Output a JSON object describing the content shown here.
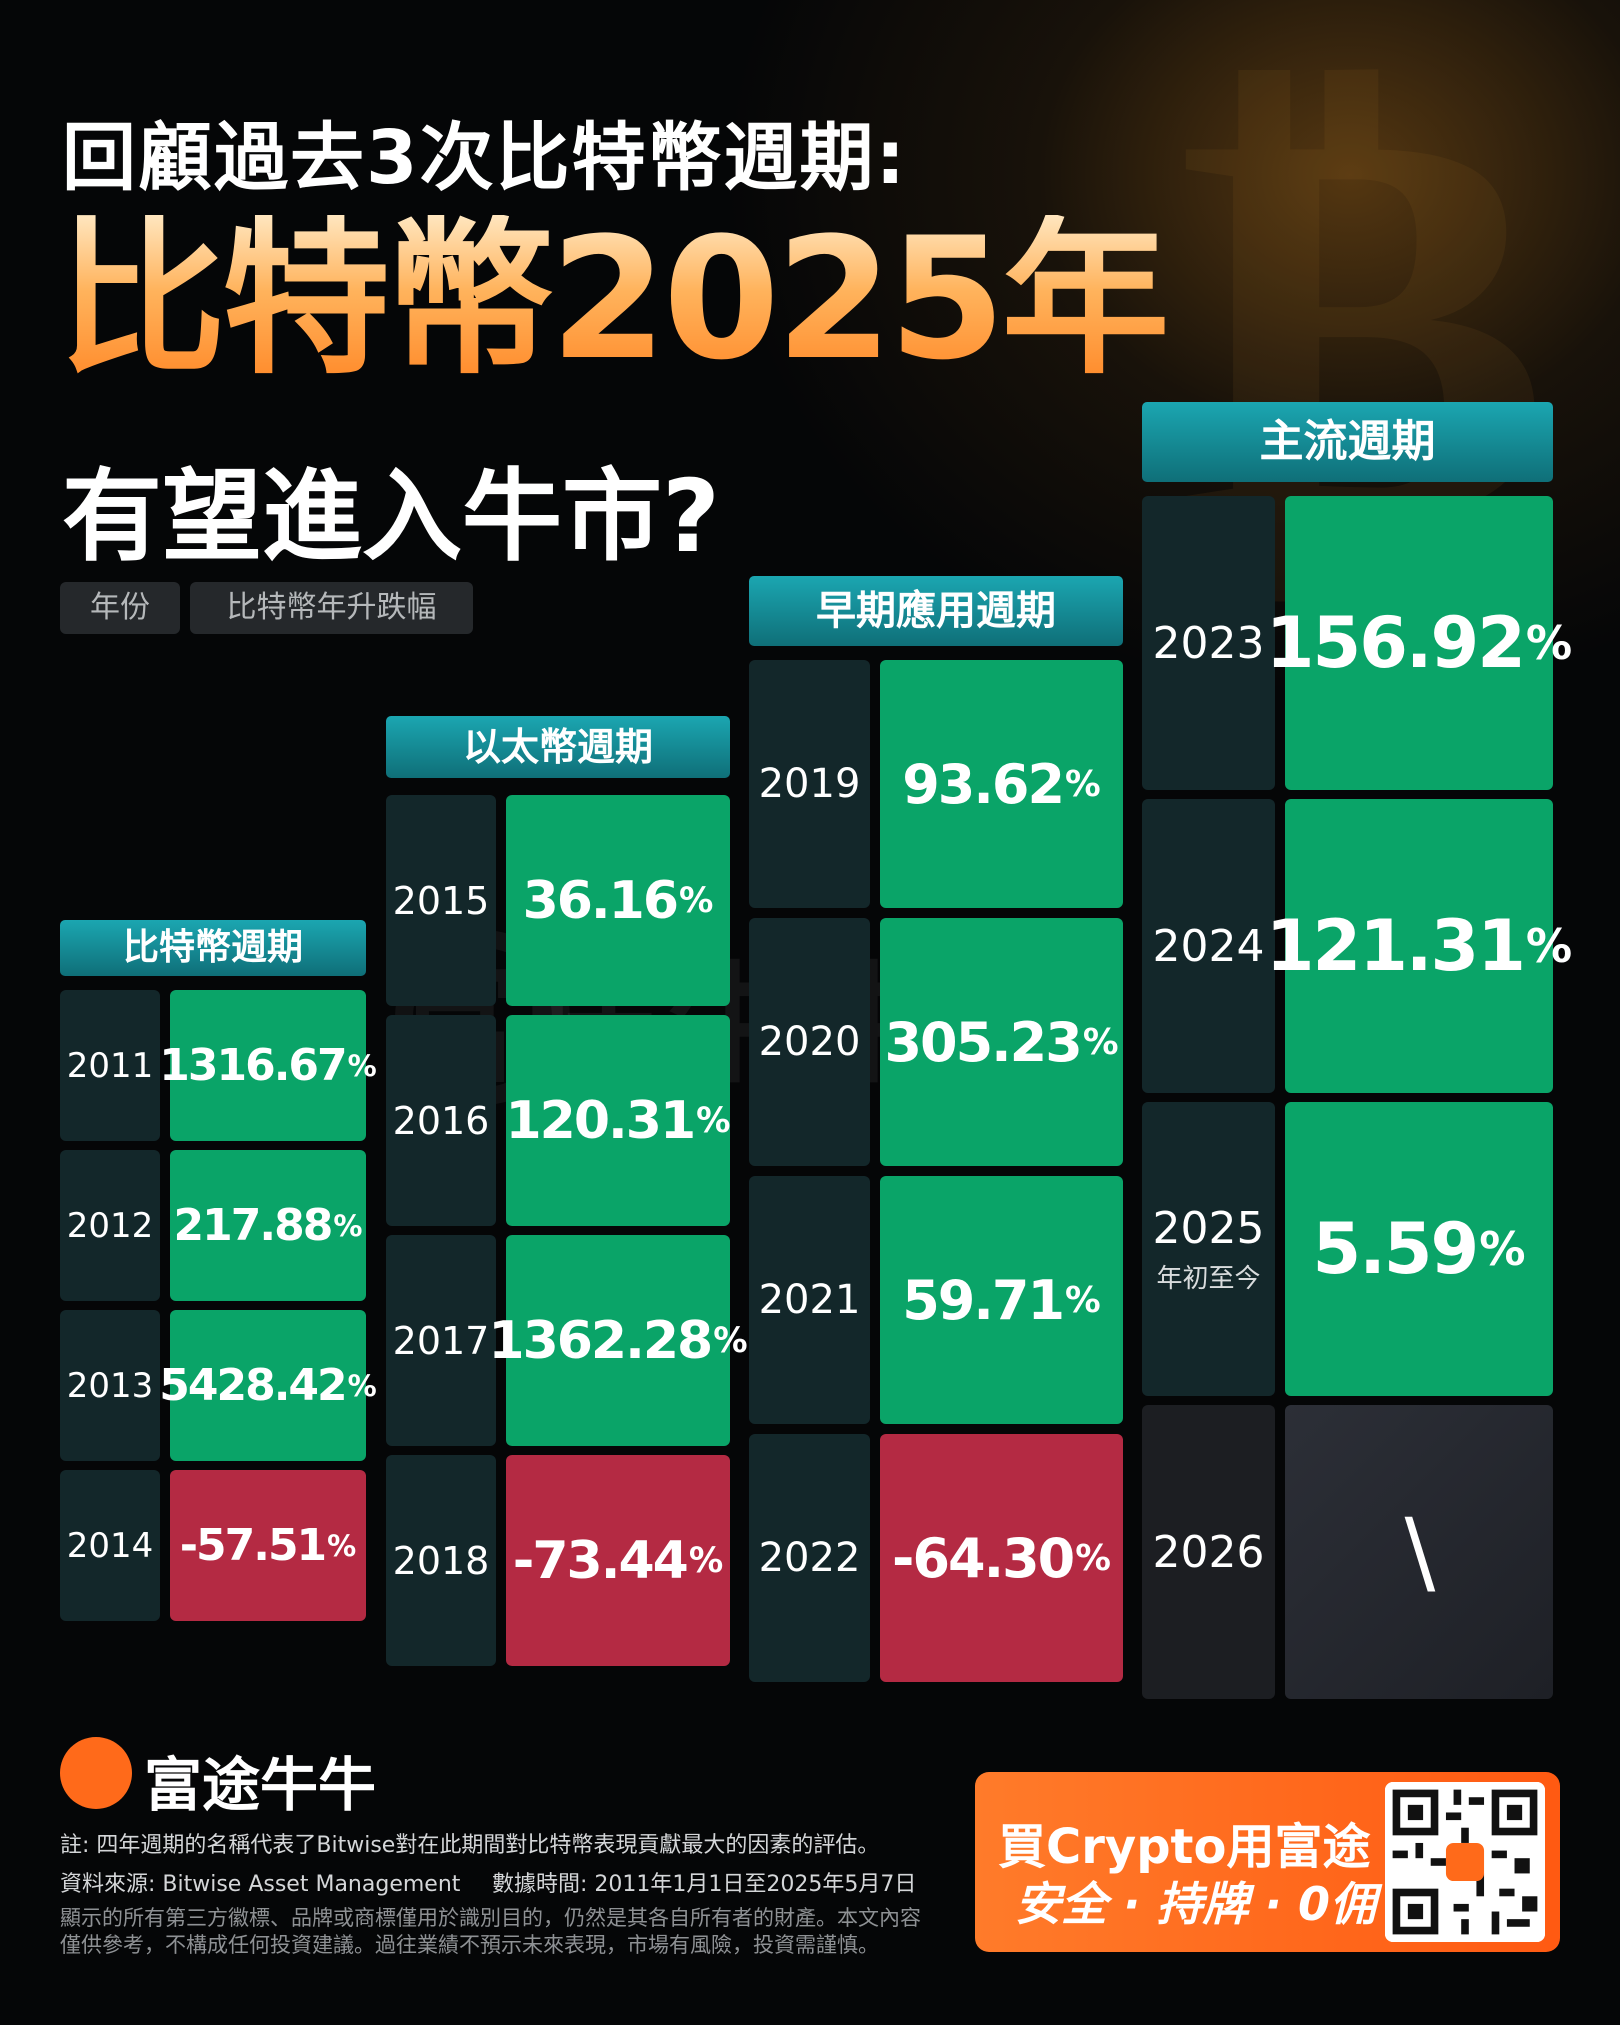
{
  "title": {
    "line1": "回顧過去3次比特幣週期:",
    "line2": "比特幣2025年",
    "line3": "有望進入牛市?"
  },
  "legend": {
    "year": "年份",
    "change": "比特幣年升跌幅"
  },
  "watermark": "富途牛牛",
  "chart_data": {
    "type": "table",
    "columns": [
      "年份",
      "比特幣年升跌幅"
    ],
    "groups": [
      {
        "name": "比特幣週期",
        "rows": [
          {
            "year": "2011",
            "value": "1316.67",
            "sign": "pos"
          },
          {
            "year": "2012",
            "value": "217.88",
            "sign": "pos"
          },
          {
            "year": "2013",
            "value": "5428.42",
            "sign": "pos"
          },
          {
            "year": "2014",
            "value": "-57.51",
            "sign": "neg"
          }
        ]
      },
      {
        "name": "以太幣週期",
        "rows": [
          {
            "year": "2015",
            "value": "36.16",
            "sign": "pos"
          },
          {
            "year": "2016",
            "value": "120.31",
            "sign": "pos"
          },
          {
            "year": "2017",
            "value": "1362.28",
            "sign": "pos"
          },
          {
            "year": "2018",
            "value": "-73.44",
            "sign": "neg"
          }
        ]
      },
      {
        "name": "早期應用週期",
        "rows": [
          {
            "year": "2019",
            "value": "93.62",
            "sign": "pos"
          },
          {
            "year": "2020",
            "value": "305.23",
            "sign": "pos"
          },
          {
            "year": "2021",
            "value": "59.71",
            "sign": "pos"
          },
          {
            "year": "2022",
            "value": "-64.30",
            "sign": "neg"
          }
        ]
      },
      {
        "name": "主流週期",
        "rows": [
          {
            "year": "2023",
            "value": "156.92",
            "sign": "pos"
          },
          {
            "year": "2024",
            "value": "121.31",
            "sign": "pos"
          },
          {
            "year": "2025",
            "sub": "年初至今",
            "value": "5.59",
            "sign": "pos"
          },
          {
            "year": "2026",
            "value": "\\",
            "sign": "na"
          }
        ]
      }
    ],
    "unit": "%",
    "colors": {
      "positive": "#0aa468",
      "negative": "#b42a43",
      "header": "#1ba6b1"
    }
  },
  "footer": {
    "brand": "富途牛牛",
    "note": "註: 四年週期的名稱代表了Bitwise對在此期間對比特幣表現貢獻最大的因素的評估。",
    "source": "資料來源: Bitwise Asset Management",
    "date": "數據時間: 2011年1月1日至2025年5月7日",
    "disclaimer1": "顯示的所有第三方徽標、品牌或商標僅用於識別目的，仍然是其各自所有者的財產。本文內容",
    "disclaimer2": "僅供參考，不構成任何投資建議。過往業績不預示未來表現，市場有風險，投資需謹慎。"
  },
  "cta": {
    "line1": "買Crypto用富途",
    "line2": "安全 · 持牌 · 0佣"
  }
}
